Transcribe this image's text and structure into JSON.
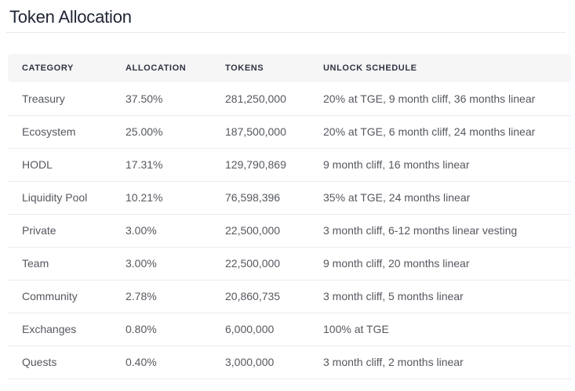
{
  "page": {
    "title": "Token Allocation"
  },
  "colors": {
    "title_text": "#1f2535",
    "header_bg": "#f6f6f7",
    "header_text": "#2f3442",
    "body_text": "#55585f",
    "divider": "#e9eaec"
  },
  "table": {
    "columns": [
      "CATEGORY",
      "ALLOCATION",
      "TOKENS",
      "UNLOCK SCHEDULE"
    ],
    "rows": [
      {
        "category": "Treasury",
        "allocation": "37.50%",
        "tokens": "281,250,000",
        "unlock_schedule": "20% at TGE, 9 month cliff, 36 months linear"
      },
      {
        "category": "Ecosystem",
        "allocation": "25.00%",
        "tokens": "187,500,000",
        "unlock_schedule": "20% at TGE, 6 month cliff, 24 months linear"
      },
      {
        "category": "HODL",
        "allocation": "17.31%",
        "tokens": "129,790,869",
        "unlock_schedule": "9 month cliff, 16 months linear"
      },
      {
        "category": "Liquidity Pool",
        "allocation": "10.21%",
        "tokens": "76,598,396",
        "unlock_schedule": "35% at TGE, 24 months linear"
      },
      {
        "category": "Private",
        "allocation": "3.00%",
        "tokens": "22,500,000",
        "unlock_schedule": "3 month cliff, 6-12 months linear vesting"
      },
      {
        "category": "Team",
        "allocation": "3.00%",
        "tokens": "22,500,000",
        "unlock_schedule": "9 month cliff, 20 months linear"
      },
      {
        "category": "Community",
        "allocation": "2.78%",
        "tokens": "20,860,735",
        "unlock_schedule": "3 month cliff, 5 months linear"
      },
      {
        "category": "Exchanges",
        "allocation": "0.80%",
        "tokens": "6,000,000",
        "unlock_schedule": "100% at TGE"
      },
      {
        "category": "Quests",
        "allocation": "0.40%",
        "tokens": "3,000,000",
        "unlock_schedule": "3 month cliff, 2 months linear"
      }
    ]
  },
  "chart_data": {
    "type": "table",
    "title": "Token Allocation",
    "columns": [
      "CATEGORY",
      "ALLOCATION",
      "TOKENS",
      "UNLOCK SCHEDULE"
    ],
    "rows": [
      [
        "Treasury",
        "37.50%",
        "281,250,000",
        "20% at TGE, 9 month cliff, 36 months linear"
      ],
      [
        "Ecosystem",
        "25.00%",
        "187,500,000",
        "20% at TGE, 6 month cliff, 24 months linear"
      ],
      [
        "HODL",
        "17.31%",
        "129,790,869",
        "9 month cliff, 16 months linear"
      ],
      [
        "Liquidity Pool",
        "10.21%",
        "76,598,396",
        "35% at TGE, 24 months linear"
      ],
      [
        "Private",
        "3.00%",
        "22,500,000",
        "3 month cliff, 6-12 months linear vesting"
      ],
      [
        "Team",
        "3.00%",
        "22,500,000",
        "9 month cliff, 20 months linear"
      ],
      [
        "Community",
        "2.78%",
        "20,860,735",
        "3 month cliff, 5 months linear"
      ],
      [
        "Exchanges",
        "0.80%",
        "6,000,000",
        "100% at TGE"
      ],
      [
        "Quests",
        "0.40%",
        "3,000,000",
        "3 month cliff, 2 months linear"
      ]
    ],
    "allocation_percent": [
      37.5,
      25.0,
      17.31,
      10.21,
      3.0,
      3.0,
      2.78,
      0.8,
      0.4
    ],
    "tokens_numeric": [
      281250000,
      187500000,
      129790869,
      76598396,
      22500000,
      22500000,
      20860735,
      6000000,
      3000000
    ]
  }
}
